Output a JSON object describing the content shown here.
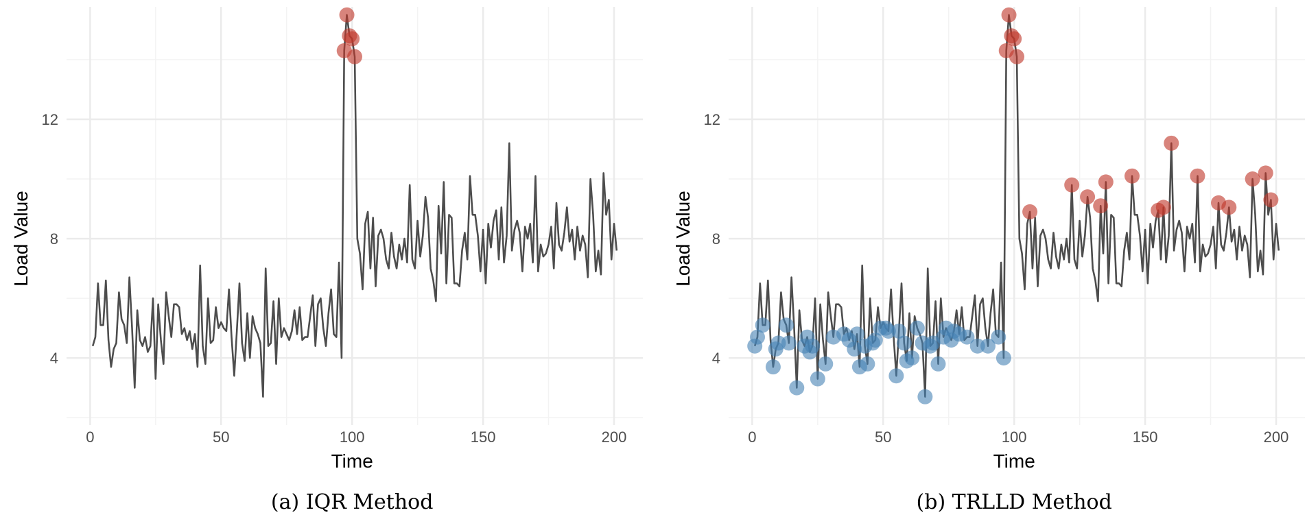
{
  "chart_data": [
    {
      "type": "line",
      "caption": "(a) IQR Method",
      "xlabel": "Time",
      "ylabel": "Load Value",
      "xlim": [
        -9,
        211
      ],
      "ylim": [
        1.75,
        16.0
      ],
      "xticks": [
        0,
        50,
        100,
        150,
        200
      ],
      "yticks": [
        4,
        8,
        12
      ],
      "grid": true,
      "line_color": "#4d4d4d",
      "outlier_high_color": "#c0392b",
      "high_outlier_times": [
        97,
        98,
        99,
        100,
        101
      ],
      "low_outlier_times": []
    },
    {
      "type": "line",
      "caption": "(b) TRLLD Method",
      "xlabel": "Time",
      "ylabel": "Load Value",
      "xlim": [
        -9,
        211
      ],
      "ylim": [
        1.75,
        16.0
      ],
      "xticks": [
        0,
        50,
        100,
        150,
        200
      ],
      "yticks": [
        4,
        8,
        12
      ],
      "grid": true,
      "line_color": "#4d4d4d",
      "outlier_high_color": "#c0392b",
      "outlier_low_color": "#4682b4",
      "high_outlier_times": [
        97,
        98,
        99,
        100,
        101,
        106,
        122,
        128,
        133,
        135,
        145,
        155,
        157,
        160,
        170,
        178,
        182,
        191,
        196,
        198
      ],
      "low_outlier_times": [
        1,
        2,
        4,
        8,
        9,
        10,
        13,
        14,
        17,
        20,
        21,
        22,
        23,
        25,
        28,
        31,
        35,
        37,
        39,
        40,
        41,
        43,
        44,
        46,
        47,
        49,
        51,
        52,
        55,
        56,
        58,
        59,
        61,
        63,
        65,
        66,
        68,
        69,
        71,
        73,
        74,
        76,
        77,
        79,
        82,
        86,
        90,
        94,
        96
      ]
    }
  ],
  "series": {
    "x_start": 1,
    "values": [
      4.4,
      4.7,
      6.5,
      5.1,
      5.1,
      6.6,
      4.6,
      3.7,
      4.3,
      4.5,
      6.2,
      5.3,
      5.1,
      4.5,
      6.7,
      5.0,
      3.0,
      5.6,
      4.6,
      4.4,
      4.7,
      4.2,
      4.4,
      6.0,
      3.3,
      5.8,
      4.6,
      3.8,
      6.2,
      5.4,
      4.7,
      5.8,
      5.8,
      5.7,
      4.8,
      5.0,
      4.6,
      4.9,
      4.3,
      4.8,
      3.7,
      7.1,
      4.4,
      3.8,
      6.0,
      4.5,
      4.6,
      5.7,
      5.0,
      5.2,
      5.0,
      4.9,
      6.3,
      4.7,
      3.4,
      4.9,
      6.5,
      4.5,
      3.9,
      5.5,
      4.0,
      5.4,
      5.0,
      4.8,
      4.5,
      2.7,
      7.0,
      4.4,
      4.5,
      5.9,
      3.8,
      6.0,
      4.7,
      5.0,
      4.8,
      4.6,
      4.9,
      5.6,
      4.8,
      5.7,
      4.6,
      4.7,
      4.7,
      5.4,
      6.1,
      4.4,
      5.8,
      6.0,
      5.0,
      4.4,
      5.5,
      6.3,
      4.8,
      4.7,
      7.2,
      4.0,
      14.3,
      15.5,
      14.8,
      14.7,
      14.1,
      8.0,
      7.5,
      6.3,
      8.5,
      8.9,
      7.0,
      8.7,
      6.4,
      8.1,
      8.3,
      8.0,
      7.3,
      7.0,
      8.2,
      7.4,
      7.0,
      7.8,
      7.3,
      8.0,
      7.2,
      9.8,
      7.3,
      7.0,
      8.6,
      7.4,
      8.1,
      9.4,
      8.7,
      7.0,
      6.6,
      5.9,
      9.1,
      7.5,
      9.9,
      6.5,
      8.8,
      8.7,
      6.5,
      6.5,
      6.4,
      7.6,
      8.2,
      7.3,
      10.1,
      8.8,
      8.8,
      8.1,
      6.9,
      8.3,
      6.5,
      8.5,
      7.7,
      8.6,
      8.95,
      7.3,
      9.05,
      7.2,
      8.1,
      11.2,
      7.6,
      8.3,
      8.6,
      8.2,
      6.9,
      8.4,
      8.0,
      8.5,
      7.2,
      10.1,
      6.9,
      7.8,
      7.4,
      7.5,
      7.8,
      8.4,
      7.0,
      9.2,
      7.8,
      7.6,
      8.2,
      9.05,
      7.9,
      8.3,
      7.3,
      8.4,
      7.6,
      8.1,
      7.8,
      6.7,
      10.0,
      8.8,
      6.9,
      7.6,
      6.8,
      10.2,
      8.8,
      9.3,
      7.3,
      8.5,
      7.6
    ]
  }
}
